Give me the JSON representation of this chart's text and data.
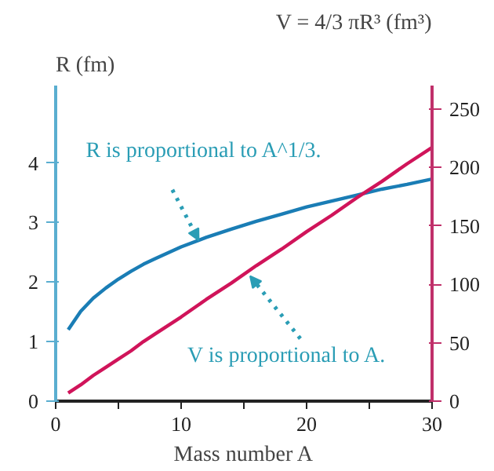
{
  "chart_data": {
    "type": "line",
    "xlabel": "Mass number A",
    "ylabel": "R (fm)",
    "y2label": "V = 4/3 πR³ (fm³)",
    "x": [
      1,
      2,
      3,
      4,
      5,
      6,
      7,
      8,
      10,
      12,
      14,
      16,
      18,
      20,
      22,
      24,
      26,
      28,
      30
    ],
    "series": [
      {
        "color": "#1a7db5",
        "values": [
          1.2,
          1.51,
          1.73,
          1.9,
          2.05,
          2.18,
          2.3,
          2.4,
          2.59,
          2.75,
          2.89,
          3.02,
          3.14,
          3.26,
          3.36,
          3.46,
          3.56,
          3.64,
          3.73
        ]
      },
      {
        "color": "#d0145a",
        "axis": "y2",
        "values": [
          7,
          14,
          22,
          29,
          36,
          43,
          51,
          58,
          72,
          87,
          101,
          116,
          130,
          145,
          159,
          174,
          188,
          203,
          217
        ]
      }
    ],
    "xlim": [
      0,
      30
    ],
    "xticks": [
      0,
      {
        "value": 5,
        "label": null
      },
      10,
      {
        "value": 15,
        "label": null
      },
      20,
      {
        "value": 25,
        "label": null
      },
      30
    ],
    "ylim": [
      0,
      5.3
    ],
    "yticks": [
      0,
      1,
      2,
      3,
      4
    ],
    "y2lim": [
      0,
      270
    ],
    "y2ticks": [
      0,
      50,
      100,
      150,
      200,
      250
    ],
    "grid": false,
    "marker": "none",
    "line_style": "solid",
    "annotations": [
      {
        "text": "R is proportional to A^1/3.",
        "x": 11.4,
        "y": 2.7
      },
      {
        "text": "V is proportional to A.",
        "x": 15.5,
        "y": 2.1
      }
    ]
  }
}
